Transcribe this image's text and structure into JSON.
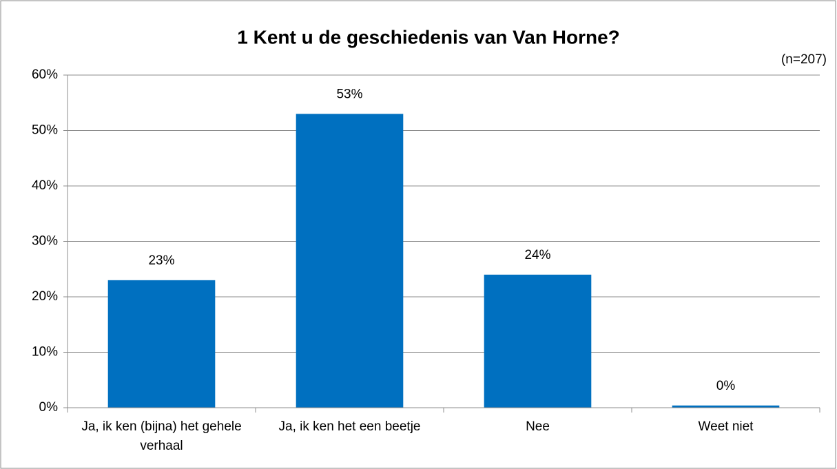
{
  "chart_data": {
    "type": "bar",
    "title": "1 Kent u de geschiedenis van Van Horne?",
    "subtitle": "(n=207)",
    "categories": [
      "Ja, ik ken (bijna) het gehele verhaal",
      "Ja, ik ken het een beetje",
      "Nee",
      "Weet niet"
    ],
    "values": [
      23,
      53,
      24,
      0.4
    ],
    "value_labels": [
      "23%",
      "53%",
      "24%",
      "0%"
    ],
    "color": "#0070c0",
    "ylim": [
      0,
      60
    ],
    "yticks": [
      {
        "value": 0,
        "label": "0%"
      },
      {
        "value": 10,
        "label": "10%"
      },
      {
        "value": 20,
        "label": "20%"
      },
      {
        "value": 30,
        "label": "30%"
      },
      {
        "value": 40,
        "label": "40%"
      },
      {
        "value": 50,
        "label": "50%"
      },
      {
        "value": 60,
        "label": "60%"
      }
    ],
    "grid": true
  }
}
